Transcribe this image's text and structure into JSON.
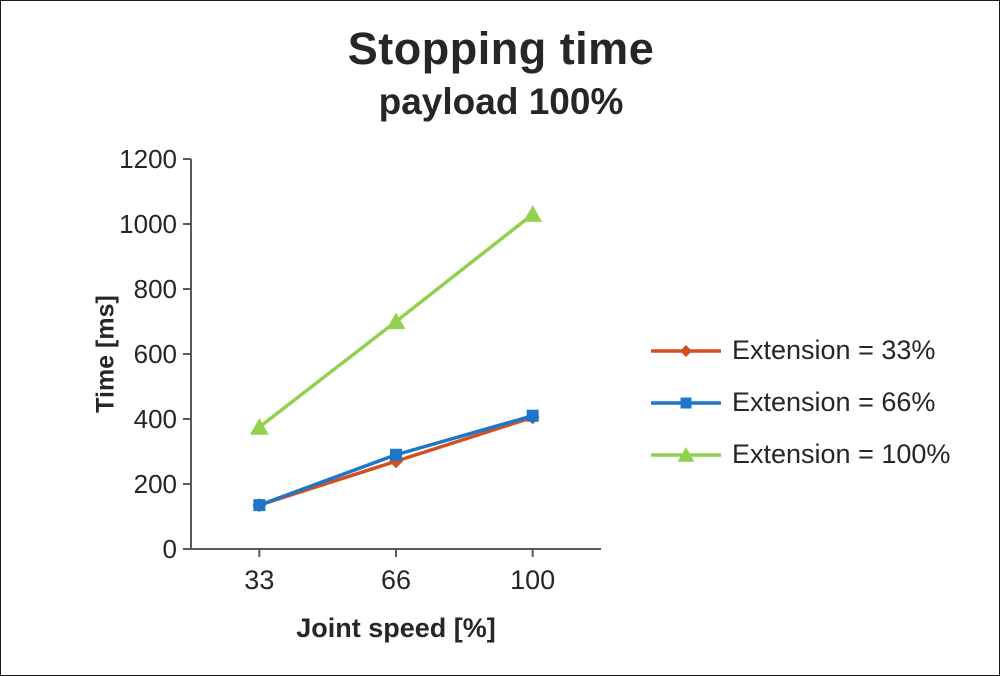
{
  "chart_data": {
    "type": "line",
    "title": "Stopping time",
    "subtitle": "payload 100%",
    "xlabel": "Joint speed [%]",
    "ylabel": "Time [ms]",
    "categories": [
      "33",
      "66",
      "100"
    ],
    "ylim": [
      0,
      1200
    ],
    "ytick_step": 200,
    "ytick_labels": [
      "0",
      "200",
      "400",
      "600",
      "800",
      "1000",
      "1200"
    ],
    "grid": false,
    "legend_position": "right",
    "axis_color": "#595959",
    "text_color": "#262626",
    "series": [
      {
        "name": "Extension = 33%",
        "color": "#d2501e",
        "marker": "diamond",
        "values": [
          135,
          270,
          405
        ]
      },
      {
        "name": "Extension = 66%",
        "color": "#1c76cc",
        "marker": "square",
        "values": [
          135,
          290,
          410
        ]
      },
      {
        "name": "Extension = 100%",
        "color": "#92d050",
        "marker": "triangle",
        "values": [
          375,
          700,
          1030
        ]
      }
    ]
  }
}
